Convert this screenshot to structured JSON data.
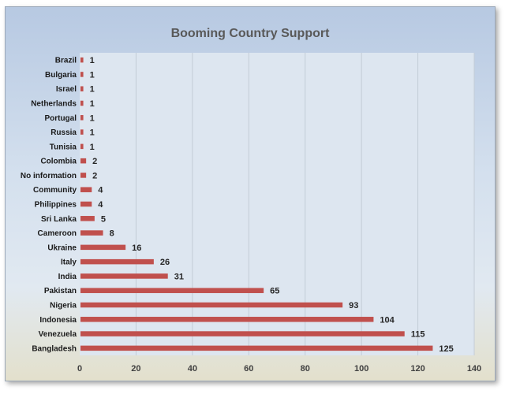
{
  "chart_data": {
    "type": "bar",
    "orientation": "horizontal",
    "title": "Booming Country Support",
    "xlabel": "",
    "ylabel": "",
    "categories": [
      "Brazil",
      "Bulgaria",
      "Israel",
      "Netherlands",
      "Portugal",
      "Russia",
      "Tunisia",
      "Colombia",
      "No information",
      "Community",
      "Philippines",
      "Sri Lanka",
      "Cameroon",
      "Ukraine",
      "Italy",
      "India",
      "Pakistan",
      "Nigeria",
      "Indonesia",
      "Venezuela",
      "Bangladesh"
    ],
    "values": [
      1,
      1,
      1,
      1,
      1,
      1,
      1,
      2,
      2,
      4,
      4,
      5,
      8,
      16,
      26,
      31,
      65,
      93,
      104,
      115,
      125
    ],
    "xlim": [
      0,
      140
    ],
    "xticks": [
      "0",
      "20",
      "40",
      "60",
      "80",
      "100",
      "120",
      "140"
    ],
    "grid": "vertical",
    "legend": "none",
    "bar_color": "#c0504d",
    "plot_background": "#dde6f0"
  }
}
